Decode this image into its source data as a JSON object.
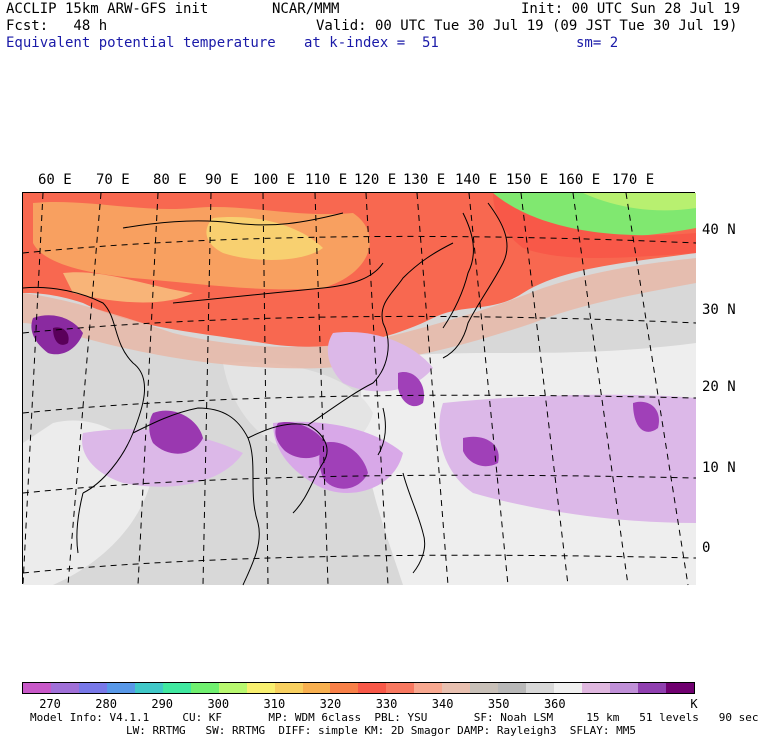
{
  "header": {
    "model_line": "ACCLIP 15km ARW-GFS init",
    "forecast_line": "Fcst:   48 h",
    "field_name": "Equivalent potential temperature",
    "center": "NCAR/MMM",
    "level": "at k-index =  51",
    "init": "Init: 00 UTC Sun 28 Jul 19",
    "valid": "Valid: 00 UTC Tue 30 Jul 19 (09 JST Tue 30 Jul 19)",
    "smoothing": "sm= 2"
  },
  "map": {
    "longitude_labels": [
      "60 E",
      "70 E",
      "80 E",
      "90 E",
      "100 E",
      "110 E",
      "120 E",
      "130 E",
      "140 E",
      "150 E",
      "160 E",
      "170 E"
    ],
    "latitude_labels": [
      "40 N",
      "30 N",
      "20 N",
      "10 N",
      "0"
    ]
  },
  "colorbar": {
    "unit": "K",
    "ticks": [
      "270",
      "280",
      "290",
      "300",
      "310",
      "320",
      "330",
      "340",
      "350",
      "360"
    ],
    "colors": [
      "#c858c8",
      "#a070d8",
      "#7878e8",
      "#5898e8",
      "#40c8c8",
      "#40e8a0",
      "#70f070",
      "#b8f870",
      "#f8f070",
      "#f8d060",
      "#f8b050",
      "#f88048",
      "#f85848",
      "#f87860",
      "#f8a890",
      "#e8c0b0",
      "#c8c0b8",
      "#b8b8b8",
      "#d8d8d8",
      "#f0f0f0",
      "#e0b8e0",
      "#c090d8",
      "#9040b0",
      "#700070"
    ]
  },
  "footer": {
    "line1": "Model Info: V4.1.1     CU: KF       MP: WDM 6class  PBL: YSU       SF: Noah LSM     15 km   51 levels   90 sec",
    "line2": "LW: RRTMG   SW: RRTMG  DIFF: simple KM: 2D Smagor DAMP: Rayleigh3  SFLAY: MM5"
  }
}
